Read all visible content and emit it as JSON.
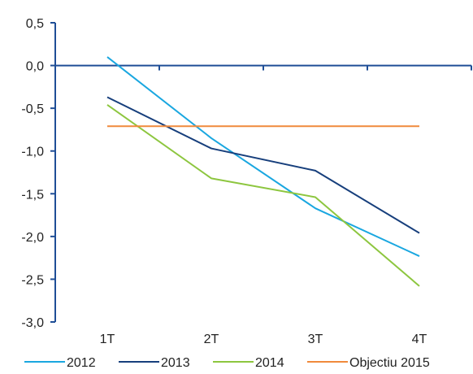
{
  "chart_data": {
    "type": "line",
    "categories": [
      "1T",
      "2T",
      "3T",
      "4T"
    ],
    "ylim": [
      -3.0,
      0.5
    ],
    "y_ticks": [
      "0,5",
      "0,0",
      "-0,5",
      "-1,0",
      "-1,5",
      "-2,0",
      "-2,5",
      "-3,0"
    ],
    "y_tick_values": [
      0.5,
      0.0,
      -0.5,
      -1.0,
      -1.5,
      -2.0,
      -2.5,
      -3.0
    ],
    "grid": false,
    "legend_position": "bottom",
    "axis_color": "#1f4e96",
    "series": [
      {
        "name": "2012",
        "color": "#1aa7e0",
        "values": [
          0.1,
          -0.85,
          -1.67,
          -2.23
        ]
      },
      {
        "name": "2013",
        "color": "#173f7c",
        "values": [
          -0.37,
          -0.97,
          -1.23,
          -1.96
        ]
      },
      {
        "name": "2014",
        "color": "#8dc63f",
        "values": [
          -0.46,
          -1.32,
          -1.54,
          -2.58
        ]
      },
      {
        "name": "Objectiu 2015",
        "color": "#f08a3c",
        "values": [
          -0.71,
          -0.71,
          -0.71,
          -0.71
        ]
      }
    ]
  }
}
